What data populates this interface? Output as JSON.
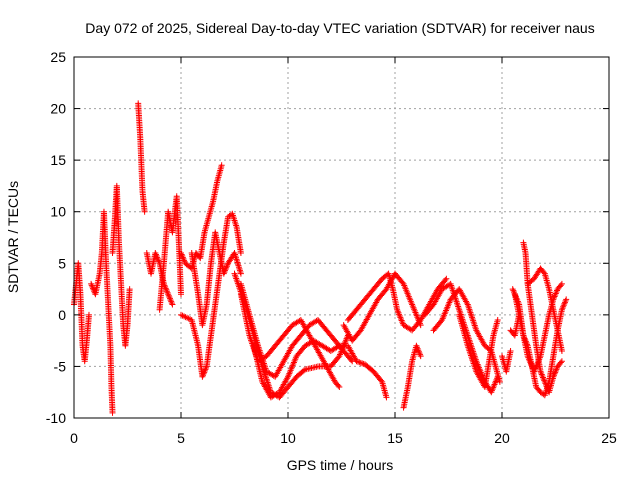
{
  "chart_data": {
    "type": "scatter",
    "title": "Day 072 of 2025, Sidereal Day-to-day VTEC variation (SDTVAR) for receiver naus",
    "xlabel": "GPS time / hours",
    "ylabel": "SDTVAR / TECUs",
    "xlim": [
      0,
      25
    ],
    "ylim": [
      -10,
      25
    ],
    "xticks": [
      "0",
      "5",
      "10",
      "15",
      "20",
      "25"
    ],
    "yticks": [
      "-10",
      "-5",
      "0",
      "5",
      "10",
      "15",
      "20",
      "25"
    ],
    "grid": true,
    "marker": "+",
    "series": [
      {
        "name": "SDTVAR",
        "color": "#ff0000",
        "tracks": [
          [
            [
              0.0,
              1.0
            ],
            [
              0.1,
              3.0
            ],
            [
              0.2,
              5.0
            ],
            [
              0.3,
              2.0
            ],
            [
              0.4,
              -3.0
            ],
            [
              0.5,
              -4.5
            ],
            [
              0.6,
              -2.5
            ],
            [
              0.7,
              0.0
            ]
          ],
          [
            [
              0.8,
              3.0
            ],
            [
              1.0,
              2.0
            ],
            [
              1.2,
              4.0
            ],
            [
              1.3,
              6.0
            ],
            [
              1.4,
              10.0
            ],
            [
              1.5,
              5.0
            ],
            [
              1.6,
              1.0
            ],
            [
              1.7,
              -3.0
            ],
            [
              1.75,
              -7.0
            ],
            [
              1.8,
              -9.5
            ]
          ],
          [
            [
              1.8,
              6.0
            ],
            [
              1.9,
              9.0
            ],
            [
              2.0,
              12.5
            ],
            [
              2.1,
              7.0
            ],
            [
              2.2,
              3.0
            ],
            [
              2.3,
              -1.0
            ],
            [
              2.4,
              -3.0
            ],
            [
              2.5,
              -1.0
            ],
            [
              2.6,
              2.5
            ]
          ],
          [
            [
              3.0,
              20.5
            ],
            [
              3.1,
              17.0
            ],
            [
              3.2,
              12.0
            ],
            [
              3.3,
              10.0
            ]
          ],
          [
            [
              3.4,
              6.0
            ],
            [
              3.6,
              4.0
            ],
            [
              3.8,
              6.0
            ],
            [
              4.0,
              5.0
            ],
            [
              4.2,
              3.0
            ],
            [
              4.4,
              2.0
            ],
            [
              4.6,
              1.0
            ]
          ],
          [
            [
              4.0,
              0.5
            ],
            [
              4.2,
              5.0
            ],
            [
              4.4,
              10.0
            ],
            [
              4.6,
              8.0
            ],
            [
              4.8,
              11.5
            ],
            [
              4.9,
              7.0
            ],
            [
              5.0,
              2.0
            ]
          ],
          [
            [
              5.0,
              6.0
            ],
            [
              5.2,
              5.0
            ],
            [
              5.5,
              4.5
            ],
            [
              5.7,
              6.0
            ],
            [
              5.9,
              5.5
            ],
            [
              6.1,
              8.0
            ],
            [
              6.3,
              9.5
            ],
            [
              6.5,
              11.0
            ],
            [
              6.7,
              13.0
            ],
            [
              6.9,
              14.5
            ]
          ],
          [
            [
              5.0,
              0.0
            ],
            [
              5.5,
              -0.5
            ],
            [
              5.8,
              -3.0
            ],
            [
              6.0,
              -6.0
            ],
            [
              6.2,
              -5.0
            ],
            [
              6.4,
              -2.0
            ],
            [
              6.6,
              1.0
            ],
            [
              6.8,
              4.0
            ],
            [
              7.0,
              7.0
            ],
            [
              7.2,
              9.5
            ],
            [
              7.4,
              9.8
            ],
            [
              7.6,
              8.5
            ],
            [
              7.8,
              6.0
            ]
          ],
          [
            [
              5.5,
              6.0
            ],
            [
              5.8,
              2.0
            ],
            [
              6.0,
              -1.0
            ],
            [
              6.2,
              1.0
            ],
            [
              6.4,
              5.0
            ],
            [
              6.6,
              8.0
            ],
            [
              6.8,
              6.0
            ],
            [
              7.0,
              4.0
            ],
            [
              7.2,
              5.0
            ],
            [
              7.5,
              6.0
            ],
            [
              7.8,
              4.0
            ]
          ],
          [
            [
              7.8,
              3.0
            ],
            [
              8.2,
              0.0
            ],
            [
              8.6,
              -3.0
            ],
            [
              9.0,
              -5.5
            ],
            [
              9.4,
              -6.0
            ],
            [
              9.8,
              -4.5
            ],
            [
              10.2,
              -3.0
            ],
            [
              10.6,
              -2.0
            ],
            [
              11.0,
              -1.0
            ],
            [
              11.4,
              -0.5
            ],
            [
              11.8,
              -1.5
            ],
            [
              12.2,
              -2.5
            ],
            [
              12.6,
              -3.5
            ],
            [
              13.0,
              -4.5
            ]
          ],
          [
            [
              7.5,
              4.0
            ],
            [
              8.0,
              1.0
            ],
            [
              8.4,
              -2.0
            ],
            [
              8.8,
              -5.0
            ],
            [
              9.2,
              -7.5
            ],
            [
              9.6,
              -8.0
            ],
            [
              10.0,
              -7.0
            ],
            [
              10.4,
              -6.0
            ],
            [
              10.8,
              -5.3
            ],
            [
              11.4,
              -5.0
            ],
            [
              12.0,
              -5.0
            ],
            [
              12.4,
              -4.0
            ],
            [
              12.8,
              -2.0
            ]
          ],
          [
            [
              7.8,
              2.0
            ],
            [
              8.2,
              -2.0
            ],
            [
              8.6,
              -4.5
            ],
            [
              9.0,
              -4.0
            ],
            [
              9.4,
              -3.0
            ],
            [
              9.8,
              -2.0
            ],
            [
              10.2,
              -1.0
            ],
            [
              10.6,
              -0.5
            ],
            [
              11.0,
              -2.0
            ],
            [
              11.4,
              -3.5
            ],
            [
              11.8,
              -5.0
            ],
            [
              12.2,
              -6.5
            ],
            [
              12.4,
              -7.0
            ]
          ],
          [
            [
              8.4,
              -3.0
            ],
            [
              8.8,
              -6.5
            ],
            [
              9.2,
              -8.0
            ],
            [
              9.6,
              -7.5
            ],
            [
              10.0,
              -6.0
            ],
            [
              10.4,
              -4.0
            ],
            [
              10.8,
              -3.0
            ],
            [
              11.2,
              -2.5
            ],
            [
              11.6,
              -3.0
            ],
            [
              12.0,
              -3.5
            ],
            [
              12.4,
              -3.0
            ],
            [
              12.8,
              -3.0
            ],
            [
              13.2,
              -4.5
            ],
            [
              13.6,
              -4.8
            ],
            [
              14.0,
              -5.5
            ],
            [
              14.4,
              -6.5
            ],
            [
              14.6,
              -8.0
            ]
          ],
          [
            [
              12.8,
              -0.5
            ],
            [
              13.2,
              0.5
            ],
            [
              13.6,
              1.5
            ],
            [
              14.0,
              2.5
            ],
            [
              14.4,
              3.5
            ],
            [
              14.7,
              4.0
            ],
            [
              14.9,
              2.5
            ],
            [
              15.1,
              0.5
            ],
            [
              15.4,
              -1.0
            ],
            [
              15.8,
              -1.5
            ],
            [
              16.2,
              -0.5
            ],
            [
              16.6,
              1.0
            ],
            [
              17.0,
              2.5
            ],
            [
              17.4,
              3.5
            ]
          ],
          [
            [
              12.6,
              -1.0
            ],
            [
              13.0,
              -2.5
            ],
            [
              13.4,
              -1.5
            ],
            [
              13.8,
              0.0
            ],
            [
              14.2,
              1.5
            ],
            [
              14.6,
              2.5
            ],
            [
              15.0,
              4.0
            ],
            [
              15.4,
              3.0
            ],
            [
              15.8,
              1.0
            ],
            [
              16.2,
              -1.0
            ]
          ],
          [
            [
              15.4,
              -9.0
            ],
            [
              15.6,
              -7.0
            ],
            [
              15.8,
              -4.5
            ],
            [
              16.0,
              -3.0
            ],
            [
              16.2,
              -4.0
            ]
          ],
          [
            [
              16.4,
              0.0
            ],
            [
              16.8,
              1.0
            ],
            [
              17.2,
              2.5
            ],
            [
              17.6,
              3.0
            ],
            [
              18.0,
              0.5
            ],
            [
              18.4,
              -2.0
            ],
            [
              18.8,
              -4.5
            ],
            [
              19.2,
              -6.5
            ],
            [
              19.5,
              -7.5
            ],
            [
              19.8,
              -6.0
            ]
          ],
          [
            [
              16.8,
              -1.5
            ],
            [
              17.2,
              -0.5
            ],
            [
              17.6,
              1.5
            ],
            [
              18.0,
              2.5
            ],
            [
              18.4,
              1.0
            ],
            [
              18.8,
              -1.5
            ],
            [
              19.2,
              -3.0
            ],
            [
              19.5,
              -3.5
            ],
            [
              19.9,
              -6.5
            ]
          ],
          [
            [
              18.0,
              0.0
            ],
            [
              18.4,
              -3.0
            ],
            [
              18.8,
              -5.5
            ],
            [
              19.2,
              -7.0
            ],
            [
              19.4,
              -4.5
            ],
            [
              19.6,
              -2.0
            ],
            [
              19.8,
              -0.5
            ]
          ],
          [
            [
              20.0,
              -4.0
            ],
            [
              20.2,
              -5.5
            ],
            [
              20.4,
              -3.5
            ]
          ],
          [
            [
              20.5,
              2.5
            ],
            [
              20.8,
              1.0
            ],
            [
              21.0,
              -2.0
            ],
            [
              21.2,
              -3.0
            ],
            [
              21.4,
              -5.0
            ],
            [
              21.6,
              -7.0
            ],
            [
              21.8,
              -7.5
            ],
            [
              22.0,
              -7.8
            ],
            [
              22.2,
              -6.5
            ],
            [
              22.4,
              -4.0
            ],
            [
              22.6,
              -1.5
            ],
            [
              22.8,
              0.5
            ],
            [
              23.0,
              1.5
            ]
          ],
          [
            [
              21.0,
              7.0
            ],
            [
              21.1,
              6.0
            ],
            [
              21.2,
              3.0
            ],
            [
              21.4,
              0.0
            ],
            [
              21.6,
              -3.0
            ],
            [
              21.8,
              -5.5
            ],
            [
              22.0,
              -6.5
            ],
            [
              22.2,
              -7.5
            ],
            [
              22.4,
              -6.0
            ],
            [
              22.6,
              -5.0
            ],
            [
              22.8,
              -4.5
            ]
          ],
          [
            [
              20.6,
              2.0
            ],
            [
              20.9,
              -1.0
            ],
            [
              21.2,
              -4.0
            ],
            [
              21.5,
              -5.5
            ],
            [
              21.8,
              -4.0
            ],
            [
              22.0,
              -2.0
            ],
            [
              22.2,
              0.0
            ],
            [
              22.4,
              1.5
            ],
            [
              22.6,
              2.5
            ],
            [
              22.8,
              3.0
            ]
          ],
          [
            [
              21.2,
              3.0
            ],
            [
              21.5,
              3.5
            ],
            [
              21.8,
              4.5
            ],
            [
              22.0,
              4.0
            ],
            [
              22.2,
              2.5
            ],
            [
              22.4,
              0.5
            ],
            [
              22.6,
              -1.5
            ],
            [
              22.8,
              -3.5
            ]
          ],
          [
            [
              20.4,
              -1.5
            ],
            [
              20.6,
              -2.0
            ],
            [
              20.8,
              0.0
            ]
          ]
        ]
      }
    ]
  }
}
